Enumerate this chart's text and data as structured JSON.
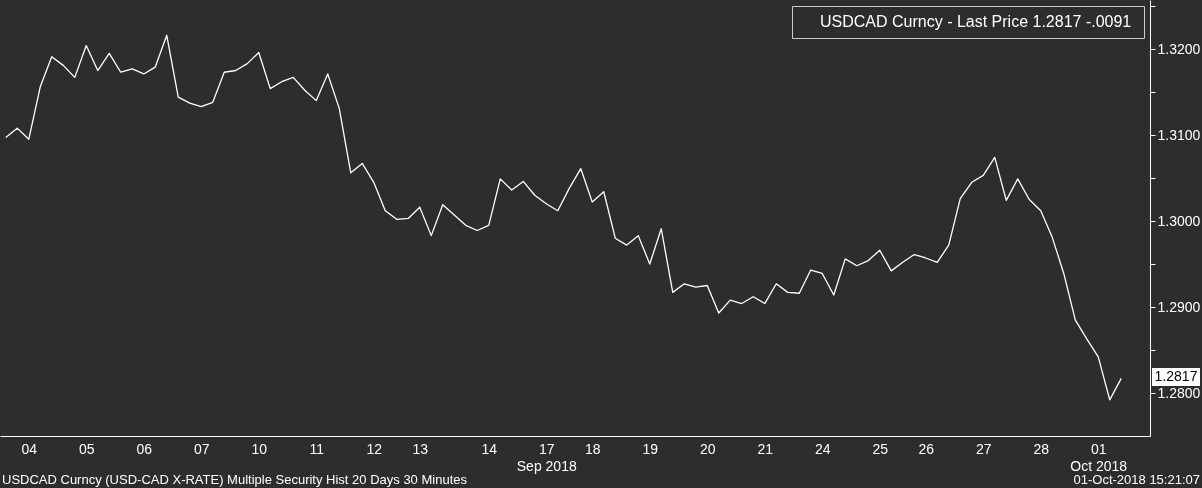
{
  "chart_data": {
    "type": "line",
    "categories": [
      null,
      null,
      "04",
      null,
      null,
      null,
      null,
      "05",
      null,
      null,
      null,
      null,
      "06",
      null,
      null,
      null,
      null,
      "07",
      null,
      null,
      null,
      null,
      "10",
      null,
      null,
      null,
      null,
      "11",
      null,
      null,
      null,
      null,
      "12",
      null,
      null,
      null,
      "13",
      null,
      null,
      null,
      null,
      null,
      "14",
      null,
      null,
      null,
      null,
      "17\nSep 2018",
      null,
      null,
      null,
      "18",
      null,
      null,
      null,
      null,
      "19",
      null,
      null,
      null,
      null,
      "20",
      null,
      null,
      null,
      null,
      "21",
      null,
      null,
      null,
      null,
      "24",
      null,
      null,
      null,
      null,
      "25",
      null,
      null,
      null,
      "26",
      null,
      null,
      null,
      null,
      "27",
      null,
      null,
      null,
      null,
      "28",
      null,
      null,
      null,
      null,
      "01\nOct 2018",
      null,
      null,
      null,
      null
    ],
    "ylim": [
      1.275,
      1.3257
    ],
    "yticks": [
      {
        "value": 1.28,
        "label": "1.2800"
      },
      {
        "value": 1.285,
        "label": null
      },
      {
        "value": 1.29,
        "label": "1.2900"
      },
      {
        "value": 1.295,
        "label": null
      },
      {
        "value": 1.3,
        "label": "1.3000"
      },
      {
        "value": 1.305,
        "label": null
      },
      {
        "value": 1.31,
        "label": "1.3100"
      },
      {
        "value": 1.315,
        "label": null
      },
      {
        "value": 1.32,
        "label": "1.3200"
      },
      {
        "value": 1.325,
        "label": null
      }
    ],
    "legend": "top right",
    "series": [
      {
        "name": "USDCAD Curncy - Last Price 1.2817  -.0091",
        "color": "#ffffff",
        "values": [
          1.3097,
          1.3108,
          1.3095,
          1.3156,
          1.3191,
          1.3181,
          1.3167,
          1.3204,
          1.3175,
          1.3195,
          1.3173,
          1.3177,
          1.3171,
          1.3179,
          1.3216,
          1.3144,
          1.3137,
          1.3133,
          1.3138,
          1.3173,
          1.3175,
          1.3183,
          1.3196,
          1.3154,
          1.3162,
          1.3167,
          1.3152,
          1.314,
          1.3171,
          1.3131,
          1.3056,
          1.3067,
          1.3045,
          1.3012,
          1.3002,
          1.3003,
          1.3016,
          1.2983,
          1.3019,
          1.3007,
          1.2995,
          1.2989,
          1.2995,
          1.3049,
          1.3036,
          1.3046,
          1.303,
          1.302,
          1.3012,
          1.3038,
          1.3061,
          1.3022,
          1.3034,
          1.298,
          1.2972,
          1.2983,
          1.295,
          1.2991,
          1.2917,
          1.2927,
          1.2923,
          1.2925,
          1.2893,
          1.2908,
          1.2904,
          1.2912,
          1.2904,
          1.2927,
          1.2917,
          1.2916,
          1.2943,
          1.2939,
          1.2914,
          1.2956,
          1.2948,
          1.2954,
          1.2966,
          1.2942,
          1.2952,
          1.2961,
          1.2957,
          1.2952,
          1.2972,
          1.3026,
          1.3045,
          1.3053,
          1.3074,
          1.3024,
          1.3049,
          1.3025,
          1.3012,
          1.2981,
          1.2939,
          1.2885,
          1.2863,
          1.2842,
          1.2792,
          1.2817,
          null,
          null
        ]
      }
    ],
    "annotations": [
      "1.2817",
      "USDCAD Curncy (USD-CAD X-RATE) Multiple Security Hist   20 Days 30 Minutes",
      "01-Oct-2018 15:21:07"
    ]
  }
}
